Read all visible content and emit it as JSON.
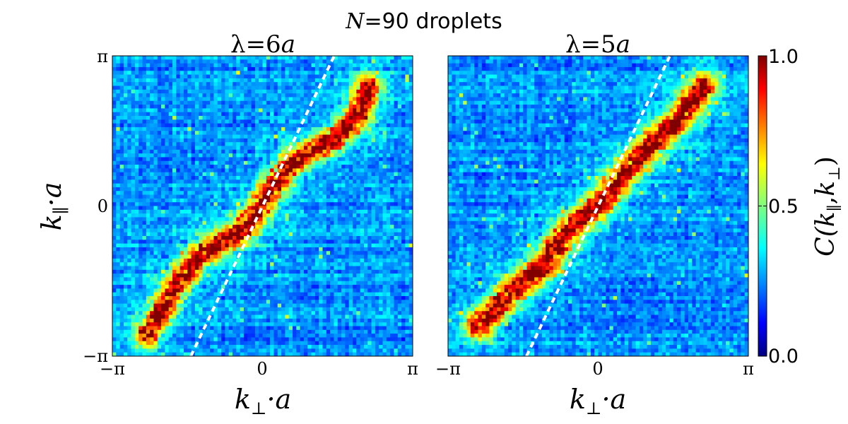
{
  "figure": {
    "suptitle_var": "N",
    "suptitle_rest": "=90 droplets"
  },
  "chart_data": [
    {
      "type": "heatmap",
      "title_lhs": "λ=6",
      "title_unit": "a",
      "xlabel_main": "k",
      "xlabel_sub": "⊥",
      "xlabel_rest": "·a",
      "ylabel_main": "k",
      "ylabel_sub": "∥",
      "ylabel_rest": "·a",
      "x_ticks": [
        "−π",
        "0",
        "π"
      ],
      "y_ticks": [
        "π",
        "0",
        "−π"
      ],
      "xlim": [
        -3.14159,
        3.14159
      ],
      "ylim": [
        -3.14159,
        3.14159
      ],
      "grid_size": 80,
      "ridge": {
        "description_points": [
          [
            -2.4,
            -2.7
          ],
          [
            -1.9,
            -1.8
          ],
          [
            -1.3,
            -1.0
          ],
          [
            -0.5,
            -0.6
          ],
          [
            -0.1,
            -0.1
          ],
          [
            0.15,
            0.3
          ],
          [
            0.6,
            0.9
          ],
          [
            1.5,
            1.4
          ],
          [
            2.0,
            1.9
          ],
          [
            2.2,
            2.5
          ]
        ],
        "width": 0.18
      },
      "dashed_line": {
        "x": [
          -1.5,
          1.5
        ],
        "y": [
          -3.14159,
          3.14159
        ]
      }
    },
    {
      "type": "heatmap",
      "title_lhs": "λ=5",
      "title_unit": "a",
      "xlabel_main": "k",
      "xlabel_sub": "⊥",
      "xlabel_rest": "·a",
      "x_ticks": [
        "−π",
        "0",
        "π"
      ],
      "xlim": [
        -3.14159,
        3.14159
      ],
      "ylim": [
        -3.14159,
        3.14159
      ],
      "grid_size": 80,
      "ridge": {
        "description_points": [
          [
            -2.5,
            -2.5
          ],
          [
            -1.8,
            -1.8
          ],
          [
            -1.2,
            -1.3
          ],
          [
            -0.6,
            -0.5
          ],
          [
            0.0,
            0.0
          ],
          [
            0.5,
            0.6
          ],
          [
            1.1,
            1.3
          ],
          [
            1.6,
            1.7
          ],
          [
            2.2,
            2.5
          ]
        ],
        "width": 0.2
      },
      "dashed_line": {
        "x": [
          -1.5,
          1.5
        ],
        "y": [
          -3.14159,
          3.14159
        ]
      }
    }
  ],
  "colorbar": {
    "label_main": "C(",
    "label_k1": "k",
    "label_sub1": "∥",
    "label_comma": ",",
    "label_k2": "k",
    "label_sub2": "⊥",
    "label_end": ")",
    "ticks": [
      "1.0",
      "0.5",
      "0.0"
    ],
    "range": [
      0.0,
      1.0
    ],
    "colormap": "jet"
  }
}
